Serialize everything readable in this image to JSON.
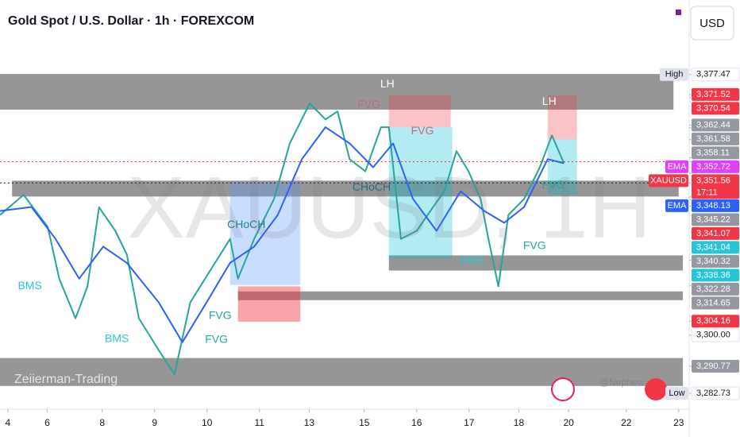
{
  "header": {
    "title": "Gold Spot / U.S. Dollar · 1h · FOREXCOM",
    "currency": "USD"
  },
  "chart_data": {
    "type": "line",
    "xlim": [
      -0.15,
      13
    ],
    "ylim": [
      3278,
      3399.6
    ],
    "xticks": [
      {
        "value": 0,
        "label": "4"
      },
      {
        "value": 0.75,
        "label": "6"
      },
      {
        "value": 1.8,
        "label": "8"
      },
      {
        "value": 2.8,
        "label": "9"
      },
      {
        "value": 3.8,
        "label": "10"
      },
      {
        "value": 4.8,
        "label": "11"
      },
      {
        "value": 5.75,
        "label": "13"
      },
      {
        "value": 6.8,
        "label": "15"
      },
      {
        "value": 7.8,
        "label": "16"
      },
      {
        "value": 8.8,
        "label": "17"
      },
      {
        "value": 9.75,
        "label": "18"
      },
      {
        "value": 10.7,
        "label": "20"
      },
      {
        "value": 11.8,
        "label": "22"
      },
      {
        "value": 12.8,
        "label": "23"
      }
    ],
    "series": [
      {
        "color": "#26a69a",
        "x": [
          -0.15,
          0.3,
          0.53,
          0.76,
          0.98,
          1.29,
          1.52,
          1.74,
          2.05,
          2.27,
          2.5,
          2.88,
          3.18,
          3.48,
          3.86,
          4.24,
          4.39,
          4.7,
          5.08,
          5.38,
          5.76,
          6.06,
          6.29,
          6.52,
          6.82,
          7.12,
          7.27,
          7.5,
          7.8,
          8.11,
          8.33,
          8.56,
          8.79,
          9.02,
          9.17,
          9.36,
          9.55,
          9.85,
          10.15,
          10.38,
          10.61
        ],
        "values": [
          3335.7,
          3341.7,
          3336.9,
          3332.2,
          3316.8,
          3305,
          3314.5,
          3338,
          3331,
          3324,
          3305,
          3295.5,
          3288.4,
          3309.7,
          3319.2,
          3328.6,
          3316.8,
          3328.6,
          3340.5,
          3357,
          3368.9,
          3364.1,
          3366.5,
          3352.3,
          3348.7,
          3361.8,
          3361.8,
          3328.6,
          3331,
          3338,
          3342.8,
          3354.7,
          3348.7,
          3340.5,
          3328.6,
          3314.5,
          3335.7,
          3340.5,
          3349.9,
          3359.4,
          3351.1
        ]
      },
      {
        "color": "#2962ff",
        "x": [
          -0.15,
          0.45,
          0.91,
          1.36,
          1.82,
          2.27,
          2.88,
          3.33,
          3.79,
          4.24,
          4.7,
          5.15,
          5.61,
          6.06,
          6.52,
          6.97,
          7.35,
          7.73,
          8.18,
          8.64,
          9.09,
          9.47,
          9.85,
          10.3,
          10.61
        ],
        "values": [
          3336.9,
          3338.1,
          3328.6,
          3316.8,
          3326.3,
          3321.5,
          3309.7,
          3297.9,
          3309.7,
          3321.5,
          3326.3,
          3335.7,
          3352.3,
          3361.8,
          3357,
          3349.9,
          3357,
          3340.5,
          3331,
          3342.8,
          3336.9,
          3333.4,
          3338.1,
          3352.3,
          3351.1
        ]
      }
    ],
    "zones": [
      {
        "x": [
          -0.15,
          12.7
        ],
        "y": [
          3367,
          3377.6
        ],
        "color": "rgba(120,120,120,0.78)"
      },
      {
        "x": [
          0.08,
          12.8
        ],
        "y": [
          3341.2,
          3345.9
        ],
        "color": "rgba(120,120,120,0.78)"
      },
      {
        "x": [
          7.27,
          12.88
        ],
        "y": [
          3319.2,
          3323.7
        ],
        "color": "rgba(120,120,120,0.78)"
      },
      {
        "x": [
          4.39,
          12.88
        ],
        "y": [
          3310.4,
          3313
        ],
        "color": "rgba(120,120,120,0.78)"
      },
      {
        "x": [
          -0.15,
          12.88
        ],
        "y": [
          3284.9,
          3293.2
        ],
        "color": "rgba(120,120,120,0.78)"
      },
      {
        "x": [
          4.24,
          5.58
        ],
        "y": [
          3314.9,
          3345.2
        ],
        "color": "rgba(100,160,255,0.35)"
      },
      {
        "x": [
          4.39,
          5.58
        ],
        "y": [
          3304,
          3314.5
        ],
        "color": "rgba(242,54,69,0.45)"
      },
      {
        "x": [
          7.27,
          8.48
        ],
        "y": [
          3322.7,
          3361.8
        ],
        "color": "rgba(0,188,212,0.3)"
      },
      {
        "x": [
          7.27,
          8.45
        ],
        "y": [
          3361.8,
          3371.2
        ],
        "color": "rgba(242,54,69,0.3)"
      },
      {
        "x": [
          10.3,
          10.86
        ],
        "y": [
          3358.2,
          3371.2
        ],
        "color": "rgba(242,54,69,0.3)"
      },
      {
        "x": [
          10.3,
          10.86
        ],
        "y": [
          3341.7,
          3358.2
        ],
        "color": "rgba(0,188,212,0.3)"
      }
    ],
    "annotations": [
      {
        "text": "LH",
        "x": 7.24,
        "y": 3374.5,
        "color": "#ffffff"
      },
      {
        "text": "FVG",
        "x": 6.89,
        "y": 3368.4,
        "color": "#c2697a"
      },
      {
        "text": "FVG",
        "x": 7.91,
        "y": 3360.6,
        "color": "#c2697a"
      },
      {
        "text": "CHoCH",
        "x": 6.94,
        "y": 3343.8,
        "color": "#1e6f7a"
      },
      {
        "text": "CHoCH",
        "x": 4.55,
        "y": 3332.7,
        "color": "#1e7f8a"
      },
      {
        "text": "LH",
        "x": 10.33,
        "y": 3369.3,
        "color": "#ffffff"
      },
      {
        "text": "BMS",
        "x": 0.42,
        "y": 3314.5,
        "color": "#26c6da"
      },
      {
        "text": "BMS",
        "x": 2.08,
        "y": 3298.8,
        "color": "#26c6da"
      },
      {
        "text": "FVG",
        "x": 4.05,
        "y": 3305.7,
        "color": "#26a69a"
      },
      {
        "text": "FVG",
        "x": 3.98,
        "y": 3298.6,
        "color": "#26a69a"
      },
      {
        "text": "FVG",
        "x": 10.05,
        "y": 3326.5,
        "color": "#26a69a"
      },
      {
        "text": "BMS",
        "x": 8.86,
        "y": 3322.2,
        "color": "#26c6da"
      },
      {
        "text": "FVG",
        "x": 10.41,
        "y": 3344.5,
        "color": "#26a69a"
      }
    ],
    "price_labels": [
      {
        "value": 3377.47,
        "label": "3,377.47",
        "tag": "High",
        "color": "#ffffff",
        "tag_color": "#e0e3eb"
      },
      {
        "value": 3371.52,
        "label": "3,371.52",
        "color": "#f23645"
      },
      {
        "value": 3370.54,
        "label": "3,370.54",
        "color": "#f23645"
      },
      {
        "value": 3362.44,
        "label": "3,362.44",
        "color": "#9598a1"
      },
      {
        "value": 3361.58,
        "label": "3,361.58",
        "color": "#9598a1"
      },
      {
        "value": 3358.11,
        "label": "3,358.11",
        "color": "#9598a1"
      },
      {
        "value": 3352.72,
        "label": "3,352.72",
        "tag": "EMA",
        "color": "#e040fb",
        "tag_color": "#e040fb"
      },
      {
        "value": 3351.56,
        "label": "3,351.56",
        "tag": "XAUUSD",
        "timer": "17:11",
        "color": "#f23645",
        "tag_color": "#f23645",
        "dotted": true
      },
      {
        "value": 3348.13,
        "label": "3,348.13",
        "tag": "EMA",
        "color": "#2962ff",
        "tag_color": "#2962ff"
      },
      {
        "value": 3345.22,
        "label": "3,345.22",
        "color": "#9598a1",
        "dotted": true
      },
      {
        "value": 3341.07,
        "label": "3,341.07",
        "color": "#f23645"
      },
      {
        "value": 3341.04,
        "label": "3,341.04",
        "color": "#26c6da"
      },
      {
        "value": 3340.32,
        "label": "3,340.32",
        "color": "#9598a1"
      },
      {
        "value": 3338.36,
        "label": "3,338.36",
        "color": "#26c6da"
      },
      {
        "value": 3322.28,
        "label": "3,322.28",
        "color": "#9598a1"
      },
      {
        "value": 3314.65,
        "label": "3,314.65",
        "color": "#9598a1"
      },
      {
        "value": 3304.16,
        "label": "3,304.16",
        "color": "#f23645"
      },
      {
        "value": 3300,
        "label": "3,300.00",
        "color": "#ffffff"
      },
      {
        "value": 3290.77,
        "label": "3,290.77",
        "color": "#9598a1"
      },
      {
        "value": 3282.73,
        "label": "3,282.73",
        "tag": "Low",
        "color": "#ffffff",
        "tag_color": "#e0e3eb"
      }
    ],
    "watermark": "XAUUSD, 1H",
    "credits": [
      "Zeiierman-Trading",
      "@Nephew"
    ]
  }
}
